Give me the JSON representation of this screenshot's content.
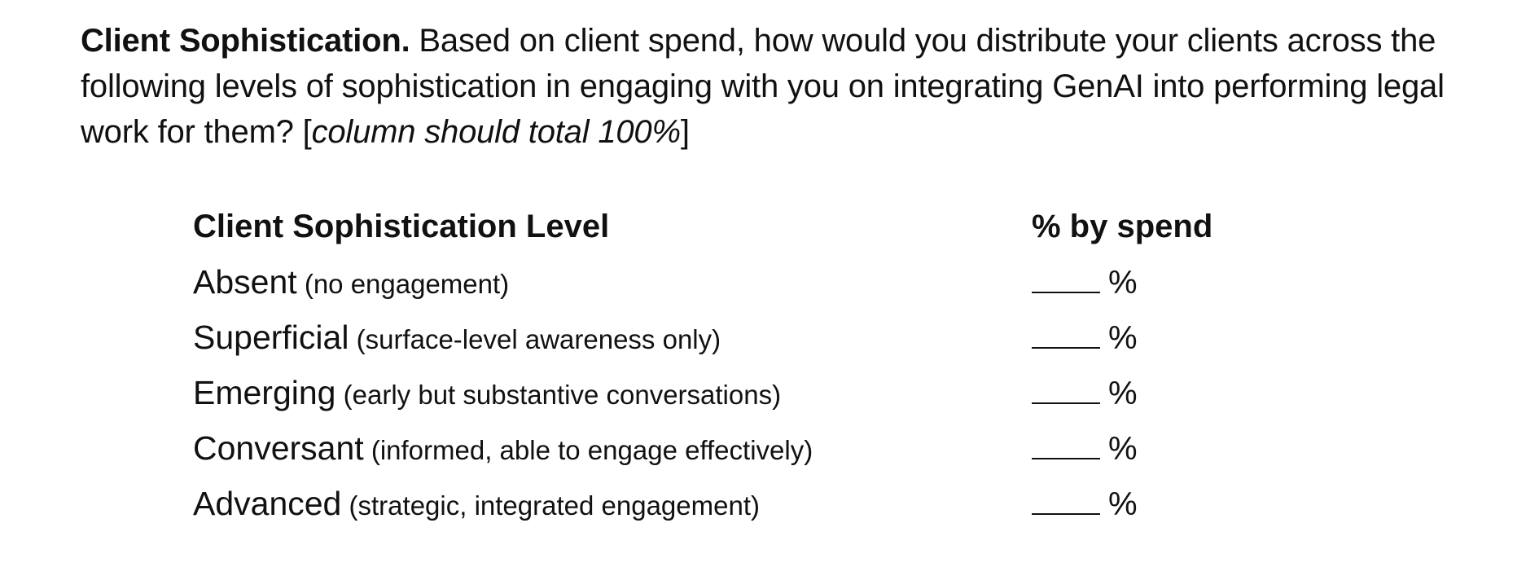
{
  "question": {
    "lead": "Client Sophistication.",
    "body": " Based on client spend, how would you distribute your clients across the following levels of sophistication in engaging with you on integrating GenAI into performing legal work for them? [",
    "note": "column should total 100%",
    "close": "]"
  },
  "table": {
    "header_level": "Client Sophistication Level",
    "header_pct": "% by spend",
    "percent_sign": "%",
    "rows": [
      {
        "name": "Absent",
        "desc": " (no engagement)"
      },
      {
        "name": "Superficial",
        "desc": " (surface-level awareness only)"
      },
      {
        "name": "Emerging",
        "desc": " (early but substantive conversations)"
      },
      {
        "name": "Conversant",
        "desc": " (informed, able to engage effectively)"
      },
      {
        "name": "Advanced",
        "desc": " (strategic, integrated engagement)"
      }
    ]
  }
}
